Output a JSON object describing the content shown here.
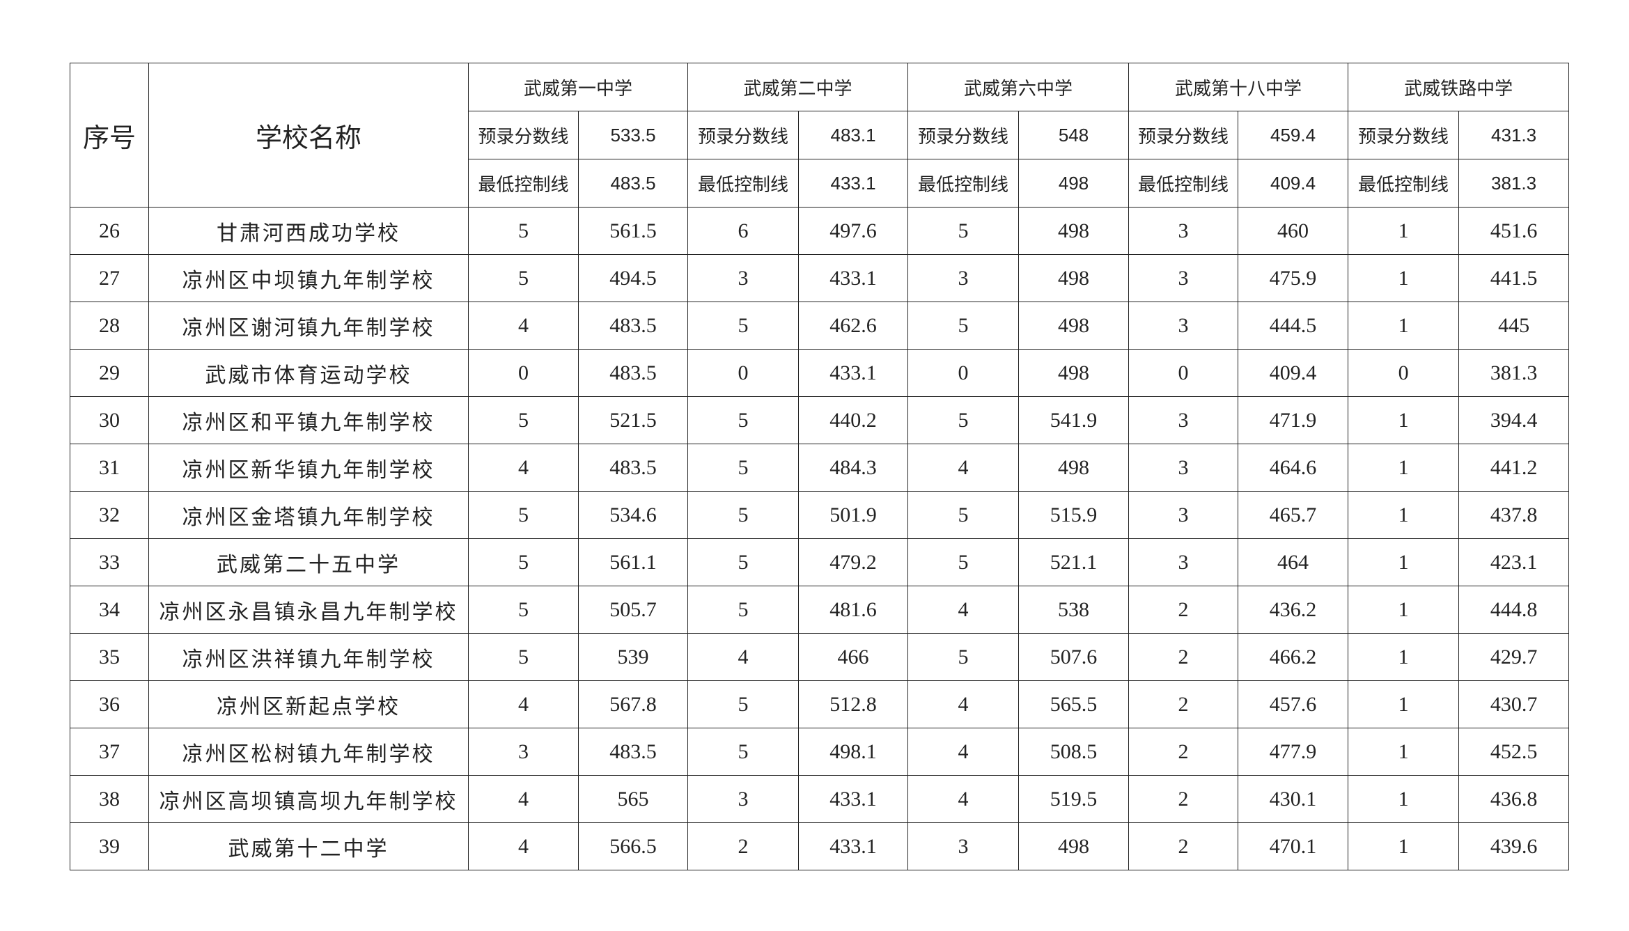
{
  "header": {
    "index_label": "序号",
    "name_label": "学校名称",
    "pre_label": "预录分数线",
    "min_label": "最低控制线",
    "schools": [
      {
        "name": "武威第一中学",
        "pre": "533.5",
        "min": "483.5"
      },
      {
        "name": "武威第二中学",
        "pre": "483.1",
        "min": "433.1"
      },
      {
        "name": "武威第六中学",
        "pre": "548",
        "min": "498"
      },
      {
        "name": "武威第十八中学",
        "pre": "459.4",
        "min": "409.4"
      },
      {
        "name": "武威铁路中学",
        "pre": "431.3",
        "min": "381.3"
      }
    ]
  },
  "rows": [
    {
      "no": "26",
      "name": "甘肃河西成功学校",
      "v": [
        "5",
        "561.5",
        "6",
        "497.6",
        "5",
        "498",
        "3",
        "460",
        "1",
        "451.6"
      ]
    },
    {
      "no": "27",
      "name": "凉州区中坝镇九年制学校",
      "v": [
        "5",
        "494.5",
        "3",
        "433.1",
        "3",
        "498",
        "3",
        "475.9",
        "1",
        "441.5"
      ]
    },
    {
      "no": "28",
      "name": "凉州区谢河镇九年制学校",
      "v": [
        "4",
        "483.5",
        "5",
        "462.6",
        "5",
        "498",
        "3",
        "444.5",
        "1",
        "445"
      ]
    },
    {
      "no": "29",
      "name": "武威市体育运动学校",
      "v": [
        "0",
        "483.5",
        "0",
        "433.1",
        "0",
        "498",
        "0",
        "409.4",
        "0",
        "381.3"
      ]
    },
    {
      "no": "30",
      "name": "凉州区和平镇九年制学校",
      "v": [
        "5",
        "521.5",
        "5",
        "440.2",
        "5",
        "541.9",
        "3",
        "471.9",
        "1",
        "394.4"
      ]
    },
    {
      "no": "31",
      "name": "凉州区新华镇九年制学校",
      "v": [
        "4",
        "483.5",
        "5",
        "484.3",
        "4",
        "498",
        "3",
        "464.6",
        "1",
        "441.2"
      ]
    },
    {
      "no": "32",
      "name": "凉州区金塔镇九年制学校",
      "v": [
        "5",
        "534.6",
        "5",
        "501.9",
        "5",
        "515.9",
        "3",
        "465.7",
        "1",
        "437.8"
      ]
    },
    {
      "no": "33",
      "name": "武威第二十五中学",
      "v": [
        "5",
        "561.1",
        "5",
        "479.2",
        "5",
        "521.1",
        "3",
        "464",
        "1",
        "423.1"
      ]
    },
    {
      "no": "34",
      "name": "凉州区永昌镇永昌九年制学校",
      "v": [
        "5",
        "505.7",
        "5",
        "481.6",
        "4",
        "538",
        "2",
        "436.2",
        "1",
        "444.8"
      ]
    },
    {
      "no": "35",
      "name": "凉州区洪祥镇九年制学校",
      "v": [
        "5",
        "539",
        "4",
        "466",
        "5",
        "507.6",
        "2",
        "466.2",
        "1",
        "429.7"
      ]
    },
    {
      "no": "36",
      "name": "凉州区新起点学校",
      "v": [
        "4",
        "567.8",
        "5",
        "512.8",
        "4",
        "565.5",
        "2",
        "457.6",
        "1",
        "430.7"
      ]
    },
    {
      "no": "37",
      "name": "凉州区松树镇九年制学校",
      "v": [
        "3",
        "483.5",
        "5",
        "498.1",
        "4",
        "508.5",
        "2",
        "477.9",
        "1",
        "452.5"
      ]
    },
    {
      "no": "38",
      "name": "凉州区高坝镇高坝九年制学校",
      "v": [
        "4",
        "565",
        "3",
        "433.1",
        "4",
        "519.5",
        "2",
        "430.1",
        "1",
        "436.8"
      ]
    },
    {
      "no": "39",
      "name": "武威第十二中学",
      "v": [
        "4",
        "566.5",
        "2",
        "433.1",
        "3",
        "498",
        "2",
        "470.1",
        "1",
        "439.6"
      ]
    }
  ]
}
